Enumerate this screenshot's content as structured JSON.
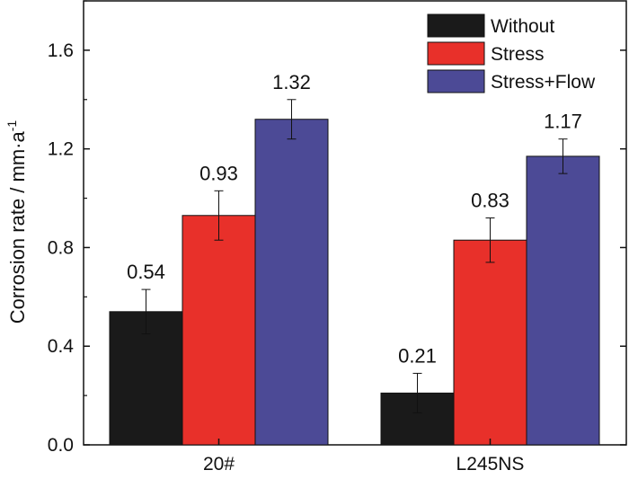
{
  "chart_data": {
    "type": "bar",
    "title": "",
    "xlabel": "",
    "ylabel": "Corrosion rate / mm·a",
    "ylabel_superscript": "-1",
    "ylim": [
      0.0,
      1.8
    ],
    "yticks": [
      "0.0",
      "0.4",
      "0.8",
      "1.2",
      "1.6"
    ],
    "ytick_values": [
      0.0,
      0.4,
      0.8,
      1.2,
      1.6
    ],
    "categories": [
      "20#",
      "L245NS"
    ],
    "legend_position": "top-right",
    "series": [
      {
        "name": "Without",
        "color": "#1a1a1a",
        "values": [
          0.54,
          0.21
        ],
        "errors": [
          0.09,
          0.08
        ],
        "labels": [
          "0.54",
          "0.21"
        ]
      },
      {
        "name": "Stress",
        "color": "#e8302a",
        "values": [
          0.93,
          0.83
        ],
        "errors": [
          0.1,
          0.09
        ],
        "labels": [
          "0.93",
          "0.83"
        ]
      },
      {
        "name": "Stress+Flow",
        "color": "#4c4a96",
        "values": [
          1.32,
          1.17
        ],
        "errors": [
          0.08,
          0.07
        ],
        "labels": [
          "1.32",
          "1.17"
        ]
      }
    ]
  }
}
